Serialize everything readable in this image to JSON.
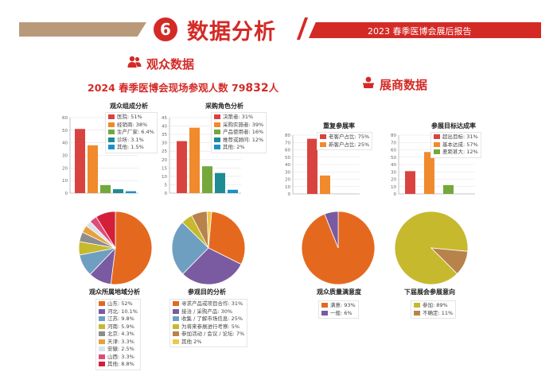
{
  "header": {
    "number": "6",
    "title": "数据分析",
    "report": "2023 春季医博会展后报告",
    "colors": {
      "red": "#d42a26",
      "tan": "#b89a7a"
    }
  },
  "audience": {
    "section_title": "观众数据",
    "icon": "people-icon",
    "subtitle_prefix": "2024 春季医博会现场参观人数 79",
    "subtitle_highlight": "832",
    "subtitle_suffix": "人"
  },
  "exhibitor": {
    "section_title": "展商数据",
    "icon": "person-icon"
  },
  "chart_data": [
    {
      "id": "composition",
      "type": "bar",
      "title": "观众组成分析",
      "categories": [
        "医院: 51%",
        "经销商: 38%",
        "生产厂家: 6.4%",
        "诊所: 3.1%",
        "其他: 1.5%"
      ],
      "values": [
        51,
        38,
        6.4,
        3.1,
        1.5
      ],
      "colors": [
        "#d9433f",
        "#f08a2c",
        "#74a83a",
        "#1e8c92",
        "#1d8fc8"
      ],
      "ylim": [
        0,
        60
      ],
      "yticks": [
        "0",
        "10",
        "20",
        "30",
        "40",
        "50",
        "60"
      ]
    },
    {
      "id": "role",
      "type": "bar",
      "title": "采购角色分析",
      "categories": [
        "决策者: 31%",
        "采购实施者: 39%",
        "产品使用者: 16%",
        "推荐或顾问: 12%",
        "其他: 2%"
      ],
      "values": [
        31,
        39,
        16,
        12,
        2
      ],
      "colors": [
        "#d9433f",
        "#f08a2c",
        "#74a83a",
        "#1e8c92",
        "#1d8fc8"
      ],
      "ylim": [
        0,
        45
      ],
      "yticks": [
        "0",
        "5",
        "10",
        "15",
        "20",
        "25",
        "30",
        "35",
        "40",
        "45"
      ]
    },
    {
      "id": "repeat",
      "type": "bar",
      "title": "重复参展率",
      "categories": [
        "老客户占比: 75%",
        "新客户占比: 25%"
      ],
      "values": [
        75,
        25
      ],
      "colors": [
        "#d9433f",
        "#f08a2c"
      ],
      "ylim": [
        0,
        80
      ],
      "yticks": [
        "0",
        "10",
        "20",
        "30",
        "40",
        "50",
        "60",
        "70",
        "80"
      ]
    },
    {
      "id": "goal",
      "type": "bar",
      "title": "参展目标达成率",
      "categories": [
        "超出目标: 31%",
        "基本达成: 57%",
        "差距甚大: 12%"
      ],
      "values": [
        31,
        57,
        12
      ],
      "colors": [
        "#d9433f",
        "#f08a2c",
        "#74a83a"
      ],
      "ylim": [
        0,
        80
      ],
      "yticks": [
        "0",
        "10",
        "20",
        "30",
        "40",
        "50",
        "60",
        "70",
        "80"
      ]
    },
    {
      "id": "region",
      "type": "pie",
      "title": "观众所属地域分析",
      "labels": [
        "山东: 52%",
        "河北: 10.1%",
        "江苏: 9.8%",
        "河南: 5.9%",
        "北京: 4.3%",
        "天津: 3.3%",
        "安徽: 2.5%",
        "山西: 3.3%",
        "其他: 8.8%"
      ],
      "values": [
        52,
        10.1,
        9.8,
        5.9,
        4.3,
        3.3,
        2.5,
        3.3,
        8.8
      ],
      "colors": [
        "#e4691f",
        "#7a5aa0",
        "#6f9fc0",
        "#c6b92e",
        "#8d8d8d",
        "#e8a13a",
        "#d7e3ee",
        "#e04a78",
        "#d41f3b"
      ]
    },
    {
      "id": "purpose",
      "type": "pie",
      "title": "参观目的分析",
      "labels": [
        "寻求产品或项目合作: 31%",
        "接洽 / 采购产品: 30%",
        "收集 / 了解市场信息: 25%",
        "为将来参展进行考察: 5%",
        "参加活动 / 会议 / 论坛: 7%",
        "其他 2%"
      ],
      "values": [
        31,
        30,
        25,
        5,
        7,
        2
      ],
      "colors": [
        "#e4691f",
        "#7a5aa0",
        "#6f9fc0",
        "#c6b92e",
        "#b8834a",
        "#efc84a"
      ]
    },
    {
      "id": "satisfaction",
      "type": "pie",
      "title": "观众质量满意度",
      "labels": [
        "满意: 93%",
        "一般: 6%"
      ],
      "values": [
        93,
        6
      ],
      "colors": [
        "#e4691f",
        "#7a5aa0"
      ]
    },
    {
      "id": "intent",
      "type": "pie",
      "title": "下届展会参展意向",
      "labels": [
        "参加: 89%",
        "不确定: 11%"
      ],
      "values": [
        89,
        11
      ],
      "colors": [
        "#c6b92e",
        "#b8834a"
      ]
    }
  ]
}
